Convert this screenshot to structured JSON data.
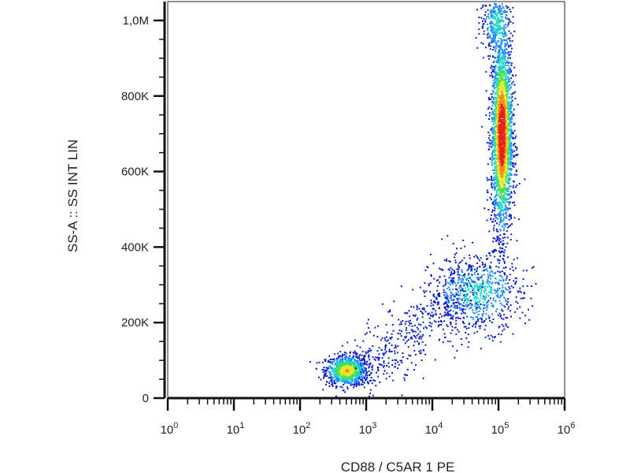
{
  "chart_data": {
    "type": "scatter",
    "subtype": "flow-cytometry-density-dot-plot",
    "title": "",
    "xlabel": "CD88 / C5AR 1 PE",
    "ylabel": "SS-A :: SS INT LIN",
    "x_scale": "log",
    "xlim": [
      1,
      1000000
    ],
    "x_ticks": [
      {
        "value": 1,
        "base": "10",
        "exp": "0"
      },
      {
        "value": 10,
        "base": "10",
        "exp": "1"
      },
      {
        "value": 100,
        "base": "10",
        "exp": "2"
      },
      {
        "value": 1000,
        "base": "10",
        "exp": "3"
      },
      {
        "value": 10000,
        "base": "10",
        "exp": "4"
      },
      {
        "value": 100000,
        "base": "10",
        "exp": "5"
      },
      {
        "value": 1000000,
        "base": "10",
        "exp": "6"
      }
    ],
    "y_scale": "linear",
    "ylim": [
      0,
      1050000
    ],
    "y_ticks": [
      {
        "value": 0,
        "label": "0"
      },
      {
        "value": 200000,
        "label": "200K"
      },
      {
        "value": 400000,
        "label": "400K"
      },
      {
        "value": 600000,
        "label": "600K"
      },
      {
        "value": 800000,
        "label": "800K"
      },
      {
        "value": 1000000,
        "label": "1,0M"
      }
    ],
    "grid": false,
    "legend": "none",
    "colormap": [
      "#0a1cc8",
      "#1f8bff",
      "#17d6c9",
      "#4ee04a",
      "#e8e82a",
      "#ff8a1a",
      "#e8201a"
    ],
    "populations": [
      {
        "x_center": 500,
        "x_spread_decades": 0.16,
        "y_center": 75000,
        "y_spread": 20000,
        "weight": 0.7
      },
      {
        "x_center": 110000,
        "x_spread_decades": 0.08,
        "y_center": 700000,
        "y_spread": 130000,
        "weight": 1.0
      },
      {
        "x_center": 45000,
        "x_spread_decades": 0.35,
        "y_center": 280000,
        "y_spread": 50000,
        "weight": 0.35
      },
      {
        "x_center": 90000,
        "x_spread_decades": 0.12,
        "y_center": 1000000,
        "y_spread": 40000,
        "weight": 0.3
      }
    ]
  }
}
